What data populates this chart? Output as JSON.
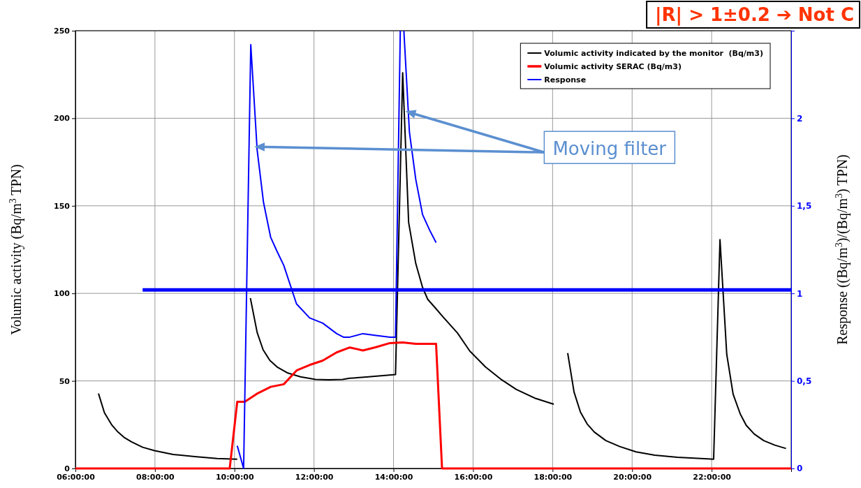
{
  "chart_data": {
    "type": "line",
    "ylabel": "Volumic activity (Bq/m$^{3}$ TPN)",
    "y2label": "Response ((Bq/m$^{3}$)/(Bq/m$^{3}$) TPN)",
    "xlim": [
      6,
      24
    ],
    "xticks": [
      {
        "value": 6,
        "label": "06:00:00"
      },
      {
        "value": 8,
        "label": "08:00:00"
      },
      {
        "value": 10,
        "label": "10:00:00"
      },
      {
        "value": 12,
        "label": "12:00:00"
      },
      {
        "value": 14,
        "label": "14:00:00"
      },
      {
        "value": 16,
        "label": "16:00:00"
      },
      {
        "value": 18,
        "label": "18:00:00"
      },
      {
        "value": 20,
        "label": "20:00:00"
      },
      {
        "value": 22,
        "label": "22:00:00"
      }
    ],
    "ylim": [
      0,
      250
    ],
    "yticks": [
      0,
      50,
      100,
      150,
      200,
      250
    ],
    "y2lim": [
      0,
      2.5
    ],
    "y2ticks": [
      {
        "value": 0,
        "label": "0"
      },
      {
        "value": 0.5,
        "label": "0,5"
      },
      {
        "value": 1,
        "label": "1"
      },
      {
        "value": 1.5,
        "label": "1,5"
      },
      {
        "value": 2,
        "label": "2"
      }
    ],
    "grid": true,
    "legend": "top right",
    "marker": "none",
    "line_style": "solid",
    "annotations": [
      "|R| > 1±0.2 ➔ Not C",
      {
        "text": "Moving filter",
        "x": 14.3,
        "y": 204
      }
    ],
    "series": [
      {
        "name": "Volumic activity indicated by the monitor  (Bq/m3)",
        "color": "#000000",
        "x": [
          6.58,
          6.73,
          6.91,
          7.07,
          7.22,
          7.41,
          7.69,
          7.99,
          8.46,
          9.0,
          9.56,
          10.07,
          10.2,
          10.4,
          10.57,
          10.72,
          10.89,
          11.07,
          11.34,
          11.66,
          12.04,
          12.36,
          12.72,
          12.9,
          13.37,
          14.05,
          14.23,
          14.38,
          14.56,
          14.73,
          14.86,
          15.05,
          15.24,
          15.61,
          15.92,
          16.31,
          16.69,
          17.09,
          17.55,
          18.03,
          18.2,
          18.38,
          18.54,
          18.7,
          18.87,
          19.05,
          19.34,
          19.69,
          20.1,
          20.57,
          21.14,
          22.05,
          22.21,
          22.38,
          22.54,
          22.72,
          22.87,
          23.07,
          23.31,
          23.59,
          23.87
        ],
        "values": [
          42.8,
          31.8,
          25,
          20.8,
          17.8,
          15.2,
          12.1,
          10.2,
          8,
          6.8,
          5.7,
          5.3,
          null,
          97.3,
          77.7,
          67.8,
          61.7,
          58,
          54.5,
          52.3,
          50.8,
          50.6,
          50.8,
          51.5,
          52.3,
          53.6,
          226,
          140.5,
          117,
          103.4,
          96.6,
          91.7,
          86.7,
          77.3,
          67,
          58,
          51.1,
          45.1,
          40.2,
          36.7,
          null,
          65.9,
          43.6,
          32.2,
          25.4,
          20.8,
          15.9,
          12.5,
          9.5,
          7.6,
          6.4,
          5.3,
          130.7,
          65.2,
          42.4,
          31.1,
          24.6,
          19.7,
          15.9,
          13.3,
          11.4
        ]
      },
      {
        "name": "Volumic activity SERAC (Bq/m3)",
        "color": "#ff0000",
        "x": [
          6,
          9.88,
          10.07,
          10.26,
          10.56,
          10.91,
          11.24,
          11.57,
          11.89,
          12.22,
          12.57,
          12.9,
          13.23,
          13.56,
          13.91,
          14.23,
          14.56,
          15.07,
          15.22,
          24
        ],
        "values": [
          0,
          0,
          38.1,
          38.1,
          42.6,
          46.6,
          48.1,
          56.1,
          59.1,
          61.6,
          66.3,
          69.1,
          67.4,
          69.3,
          71.6,
          72,
          71.2,
          71.2,
          0,
          0
        ]
      },
      {
        "name": "Response",
        "color": "#0000ff",
        "axis": "y2",
        "x": [
          10.07,
          10.23,
          10.41,
          10.57,
          10.73,
          10.91,
          11.07,
          11.24,
          11.56,
          11.89,
          12.22,
          12.57,
          12.74,
          12.9,
          13.23,
          13.56,
          13.91,
          14.05,
          14.17,
          14.21,
          14.26,
          14.4,
          14.56,
          14.73,
          14.91,
          15.07
        ],
        "values": [
          0.13,
          0,
          2.42,
          1.82,
          1.52,
          1.32,
          1.24,
          1.16,
          0.94,
          0.86,
          0.83,
          0.77,
          0.75,
          0.75,
          0.77,
          0.76,
          0.75,
          0.75,
          2.5,
          null,
          2.5,
          1.92,
          1.65,
          1.45,
          1.36,
          1.29
        ]
      },
      {
        "color": "#0000ff",
        "axis": "y2",
        "x": [
          7.69,
          24
        ],
        "values": [
          1.02,
          1.02
        ]
      }
    ]
  }
}
